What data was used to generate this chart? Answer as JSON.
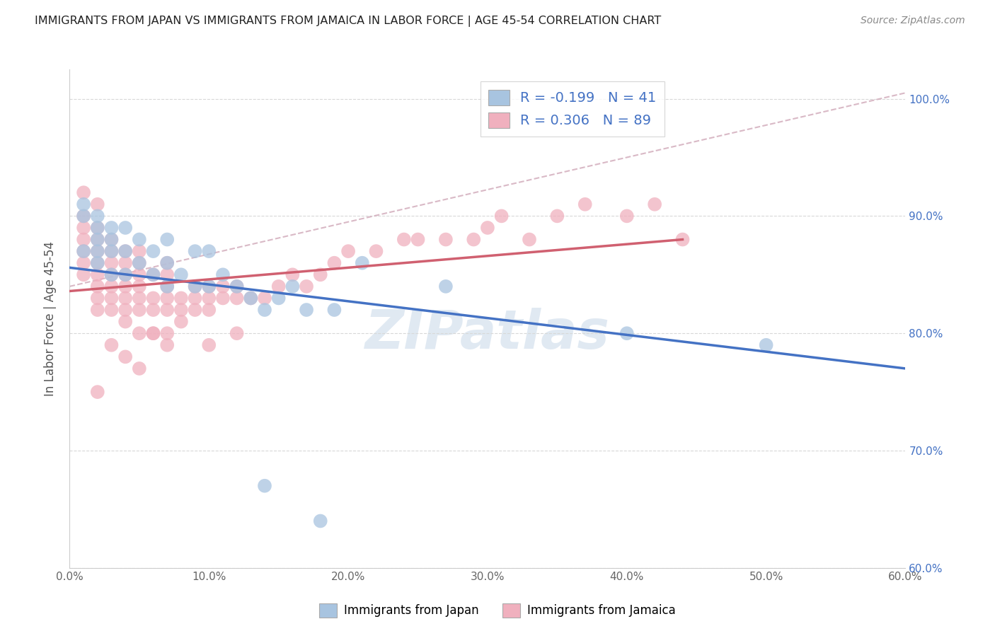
{
  "title": "IMMIGRANTS FROM JAPAN VS IMMIGRANTS FROM JAMAICA IN LABOR FORCE | AGE 45-54 CORRELATION CHART",
  "source": "Source: ZipAtlas.com",
  "ylabel": "In Labor Force | Age 45-54",
  "legend_japan": "Immigrants from Japan",
  "legend_jamaica": "Immigrants from Jamaica",
  "japan_R": -0.199,
  "japan_N": 41,
  "jamaica_R": 0.306,
  "jamaica_N": 89,
  "japan_color": "#a8c4e0",
  "jamaica_color": "#f0b0be",
  "japan_line_color": "#4472c4",
  "jamaica_line_color": "#d06070",
  "dashed_line_color": "#d0a8b8",
  "background_color": "#ffffff",
  "grid_color": "#d8d8d8",
  "xlim": [
    0.0,
    0.6
  ],
  "ylim": [
    0.6,
    1.025
  ],
  "xticklabels": [
    "0.0%",
    "10.0%",
    "20.0%",
    "30.0%",
    "40.0%",
    "50.0%",
    "60.0%"
  ],
  "yticklabels_right": [
    "60.0%",
    "70.0%",
    "80.0%",
    "90.0%",
    "100.0%"
  ],
  "ytick_positions": [
    0.6,
    0.7,
    0.8,
    0.9,
    1.0
  ],
  "xtick_positions": [
    0.0,
    0.1,
    0.2,
    0.3,
    0.4,
    0.5,
    0.6
  ],
  "japan_x": [
    0.01,
    0.01,
    0.01,
    0.02,
    0.02,
    0.02,
    0.02,
    0.02,
    0.03,
    0.03,
    0.03,
    0.03,
    0.04,
    0.04,
    0.04,
    0.05,
    0.05,
    0.06,
    0.06,
    0.07,
    0.07,
    0.07,
    0.08,
    0.09,
    0.09,
    0.1,
    0.1,
    0.11,
    0.12,
    0.13,
    0.14,
    0.15,
    0.16,
    0.17,
    0.19,
    0.21,
    0.27,
    0.4,
    0.5,
    0.14,
    0.18
  ],
  "japan_y": [
    0.87,
    0.9,
    0.91,
    0.86,
    0.87,
    0.88,
    0.89,
    0.9,
    0.85,
    0.87,
    0.88,
    0.89,
    0.85,
    0.87,
    0.89,
    0.86,
    0.88,
    0.85,
    0.87,
    0.84,
    0.86,
    0.88,
    0.85,
    0.84,
    0.87,
    0.84,
    0.87,
    0.85,
    0.84,
    0.83,
    0.82,
    0.83,
    0.84,
    0.82,
    0.82,
    0.86,
    0.84,
    0.8,
    0.79,
    0.67,
    0.64
  ],
  "jamaica_x": [
    0.01,
    0.01,
    0.01,
    0.01,
    0.01,
    0.01,
    0.01,
    0.02,
    0.02,
    0.02,
    0.02,
    0.02,
    0.02,
    0.02,
    0.02,
    0.02,
    0.02,
    0.03,
    0.03,
    0.03,
    0.03,
    0.03,
    0.03,
    0.03,
    0.03,
    0.04,
    0.04,
    0.04,
    0.04,
    0.04,
    0.04,
    0.04,
    0.04,
    0.05,
    0.05,
    0.05,
    0.05,
    0.05,
    0.05,
    0.05,
    0.05,
    0.06,
    0.06,
    0.06,
    0.06,
    0.06,
    0.07,
    0.07,
    0.07,
    0.07,
    0.07,
    0.07,
    0.07,
    0.08,
    0.08,
    0.08,
    0.09,
    0.09,
    0.09,
    0.1,
    0.1,
    0.1,
    0.1,
    0.11,
    0.11,
    0.12,
    0.12,
    0.12,
    0.13,
    0.14,
    0.15,
    0.16,
    0.17,
    0.18,
    0.19,
    0.2,
    0.22,
    0.24,
    0.25,
    0.27,
    0.29,
    0.3,
    0.31,
    0.33,
    0.35,
    0.37,
    0.4,
    0.42,
    0.44
  ],
  "jamaica_y": [
    0.85,
    0.86,
    0.87,
    0.88,
    0.89,
    0.9,
    0.92,
    0.82,
    0.83,
    0.84,
    0.85,
    0.86,
    0.87,
    0.88,
    0.89,
    0.91,
    0.75,
    0.82,
    0.83,
    0.84,
    0.85,
    0.86,
    0.87,
    0.88,
    0.79,
    0.81,
    0.82,
    0.83,
    0.84,
    0.85,
    0.86,
    0.87,
    0.78,
    0.8,
    0.82,
    0.83,
    0.84,
    0.85,
    0.86,
    0.87,
    0.77,
    0.8,
    0.82,
    0.83,
    0.85,
    0.8,
    0.8,
    0.82,
    0.83,
    0.84,
    0.85,
    0.86,
    0.79,
    0.81,
    0.82,
    0.83,
    0.82,
    0.83,
    0.84,
    0.82,
    0.83,
    0.84,
    0.79,
    0.83,
    0.84,
    0.83,
    0.84,
    0.8,
    0.83,
    0.83,
    0.84,
    0.85,
    0.84,
    0.85,
    0.86,
    0.87,
    0.87,
    0.88,
    0.88,
    0.88,
    0.88,
    0.89,
    0.9,
    0.88,
    0.9,
    0.91,
    0.9,
    0.91,
    0.88
  ],
  "watermark": "ZIPatlas",
  "watermark_color": "#c8d8e8",
  "japan_line_x0": 0.0,
  "japan_line_y0": 0.856,
  "japan_line_x1": 0.6,
  "japan_line_y1": 0.77,
  "jamaica_line_x0": 0.0,
  "jamaica_line_y0": 0.836,
  "jamaica_line_x1": 0.44,
  "jamaica_line_y1": 0.88,
  "dashed_line_x0": 0.0,
  "dashed_line_y0": 0.84,
  "dashed_line_x1": 0.6,
  "dashed_line_y1": 1.005
}
